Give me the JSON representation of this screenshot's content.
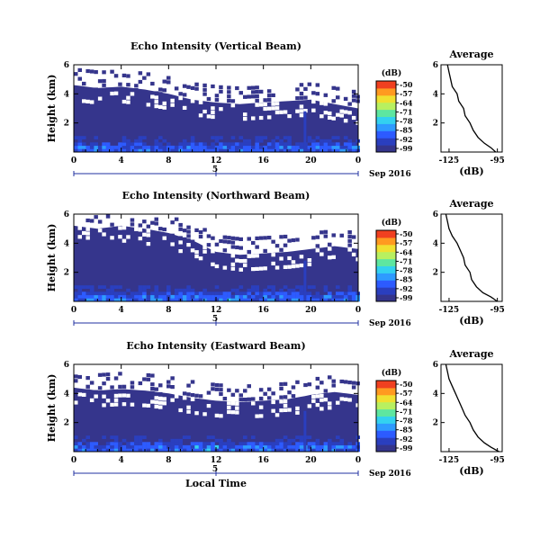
{
  "chart_data": [
    {
      "type": "heatmap",
      "title": "Echo Intensity (Vertical Beam)",
      "ylabel": "Height (km)",
      "xlabel": "",
      "x_ticks": [
        "0",
        "4",
        "8",
        "12",
        "16",
        "20",
        "0"
      ],
      "y_ticks": [
        "6",
        "4",
        "2"
      ],
      "ylim": [
        0,
        6
      ],
      "xlim": [
        0,
        24
      ],
      "date_label": "5",
      "month_label": "Sep 2016",
      "colorbar": {
        "title": "(dB)",
        "ticks": [
          "-50",
          "-57",
          "-64",
          "-71",
          "-78",
          "-85",
          "-92",
          "-99"
        ]
      },
      "gap_boundary_km": [
        [
          0,
          4.6
        ],
        [
          2,
          4.4
        ],
        [
          4,
          4.5
        ],
        [
          6,
          4.3
        ],
        [
          8,
          4.0
        ],
        [
          10,
          3.6
        ],
        [
          12,
          3.4
        ],
        [
          14,
          3.3
        ],
        [
          16,
          3.4
        ],
        [
          18,
          3.5
        ],
        [
          20,
          3.6
        ],
        [
          22,
          3.3
        ],
        [
          24,
          3.0
        ]
      ],
      "average_profile": {
        "title": "Average",
        "xlabel": "(dB)",
        "xticks": [
          "-125",
          "-95"
        ],
        "yticks": [
          "6",
          "4",
          "2"
        ],
        "height_km": [
          0,
          0.3,
          0.6,
          1,
          1.5,
          2,
          2.5,
          3,
          3.5,
          4,
          4.5,
          5,
          5.5,
          6
        ],
        "db": [
          -96,
          -99,
          -103,
          -107,
          -110,
          -112,
          -115,
          -116,
          -119,
          -120,
          -123,
          -124,
          -125,
          -126
        ]
      }
    },
    {
      "type": "heatmap",
      "title": "Echo Intensity (Northward Beam)",
      "ylabel": "Height (km)",
      "xlabel": "",
      "x_ticks": [
        "0",
        "4",
        "8",
        "12",
        "16",
        "20",
        "0"
      ],
      "y_ticks": [
        "6",
        "4",
        "2"
      ],
      "ylim": [
        0,
        6
      ],
      "xlim": [
        0,
        24
      ],
      "date_label": "5",
      "month_label": "Sep 2016",
      "colorbar": {
        "title": "(dB)",
        "ticks": [
          "-50",
          "-57",
          "-64",
          "-71",
          "-78",
          "-85",
          "-92",
          "-99"
        ]
      },
      "gap_boundary_km": [
        [
          0,
          5.2
        ],
        [
          2,
          5.0
        ],
        [
          4,
          5.2
        ],
        [
          6,
          5.0
        ],
        [
          8,
          4.7
        ],
        [
          10,
          4.2
        ],
        [
          12,
          3.4
        ],
        [
          14,
          3.2
        ],
        [
          16,
          3.3
        ],
        [
          18,
          3.4
        ],
        [
          20,
          3.6
        ],
        [
          22,
          3.8
        ],
        [
          24,
          3.6
        ]
      ],
      "average_profile": {
        "title": "Average",
        "xlabel": "(dB)",
        "xticks": [
          "-125",
          "-95"
        ],
        "yticks": [
          "6",
          "4",
          "2"
        ],
        "height_km": [
          0,
          0.3,
          0.6,
          1,
          1.5,
          2,
          2.5,
          3,
          3.5,
          4,
          4.5,
          5,
          5.5,
          6
        ],
        "db": [
          -95,
          -99,
          -104,
          -108,
          -111,
          -112,
          -115,
          -116,
          -118,
          -120,
          -123,
          -125,
          -126,
          -127
        ]
      }
    },
    {
      "type": "heatmap",
      "title": "Echo Intensity (Eastward Beam)",
      "ylabel": "Height (km)",
      "xlabel": "Local Time",
      "x_ticks": [
        "0",
        "4",
        "8",
        "12",
        "16",
        "20",
        "0"
      ],
      "y_ticks": [
        "6",
        "4",
        "2"
      ],
      "ylim": [
        0,
        6
      ],
      "xlim": [
        0,
        24
      ],
      "date_label": "5",
      "month_label": "Sep 2016",
      "colorbar": {
        "title": "(dB)",
        "ticks": [
          "-50",
          "-57",
          "-64",
          "-71",
          "-78",
          "-85",
          "-92",
          "-99"
        ]
      },
      "gap_boundary_km": [
        [
          0,
          4.4
        ],
        [
          2,
          4.2
        ],
        [
          4,
          4.3
        ],
        [
          6,
          4.2
        ],
        [
          8,
          4.0
        ],
        [
          10,
          3.7
        ],
        [
          12,
          3.5
        ],
        [
          14,
          3.4
        ],
        [
          16,
          3.5
        ],
        [
          18,
          3.6
        ],
        [
          20,
          3.9
        ],
        [
          22,
          4.1
        ],
        [
          24,
          3.9
        ]
      ],
      "average_profile": {
        "title": "Average",
        "xlabel": "(dB)",
        "xticks": [
          "-125",
          "-95"
        ],
        "yticks": [
          "6",
          "4",
          "2"
        ],
        "height_km": [
          0,
          0.3,
          0.6,
          1,
          1.5,
          2,
          2.5,
          3,
          3.5,
          4,
          4.5,
          5,
          5.5,
          6
        ],
        "db": [
          -94,
          -99,
          -103,
          -107,
          -110,
          -112,
          -115,
          -117,
          -119,
          -121,
          -123,
          -125,
          -126,
          -127
        ]
      }
    }
  ]
}
